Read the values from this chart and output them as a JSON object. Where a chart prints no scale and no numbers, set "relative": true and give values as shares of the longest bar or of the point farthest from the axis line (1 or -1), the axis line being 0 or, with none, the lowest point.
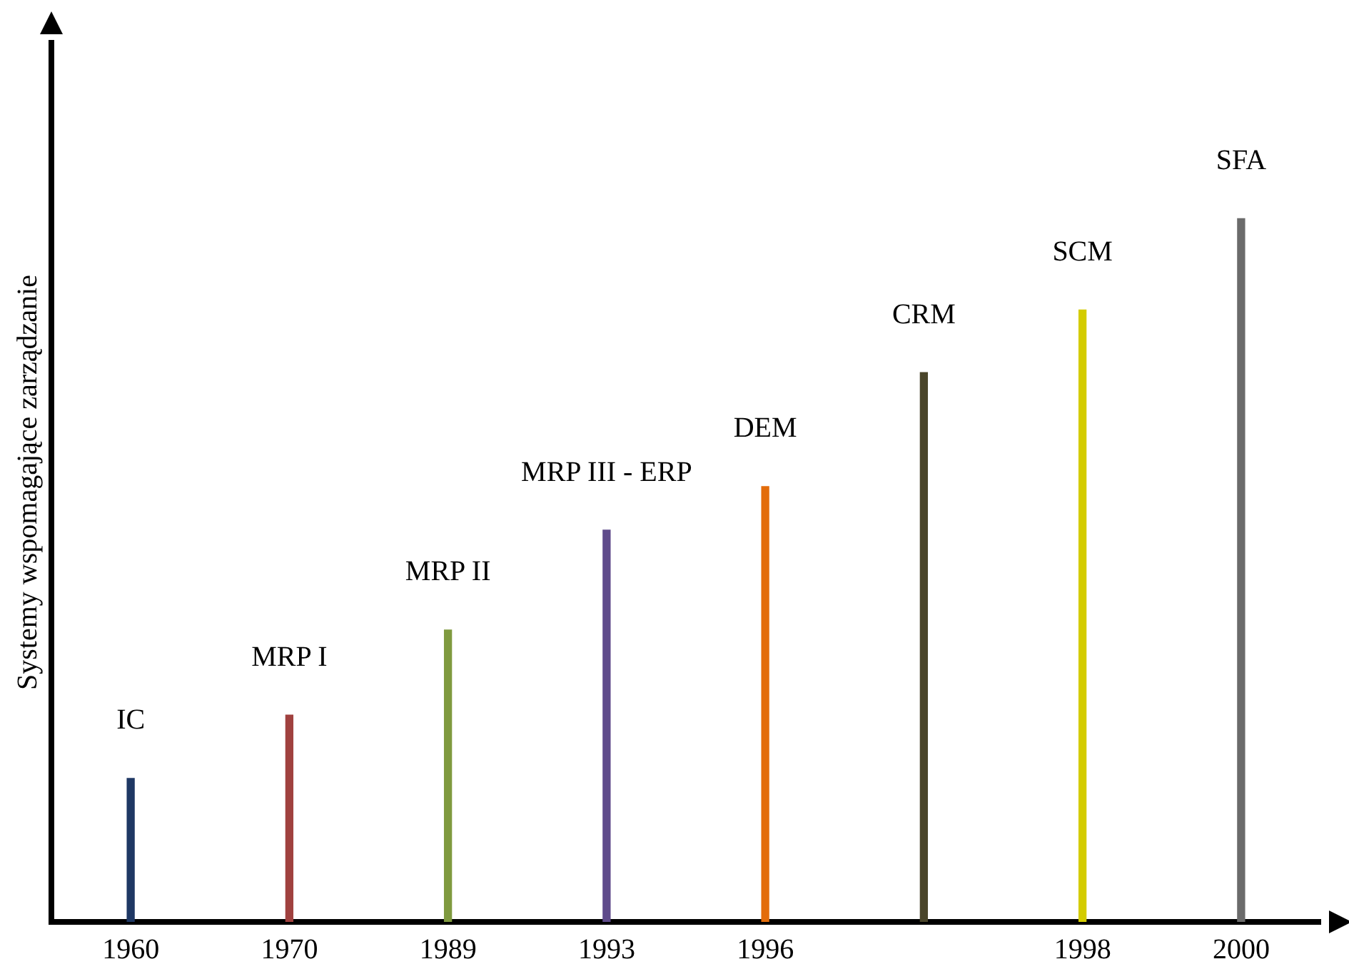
{
  "chart_data": {
    "type": "bar",
    "relative": true,
    "ylabel": "Systemy wspomagające zarządzanie",
    "categories": [
      "1960",
      "1970",
      "1989",
      "1993",
      "1996",
      null,
      "1998",
      "2000"
    ],
    "values": [
      0.204,
      0.294,
      0.415,
      0.557,
      0.619,
      0.781,
      0.87,
      1
    ],
    "colors": [
      "#1f3864",
      "#a0413f",
      "#7f9a3f",
      "#5f4b8b",
      "#e36c0a",
      "#4a452a",
      "#d4cc00",
      "#6b6b6b"
    ],
    "annotations": [
      "IC",
      "MRP I",
      "MRP II",
      "MRP III - ERP",
      "DEM",
      "CRM",
      "SCM",
      "SFA"
    ],
    "grid": false,
    "legend": false
  }
}
